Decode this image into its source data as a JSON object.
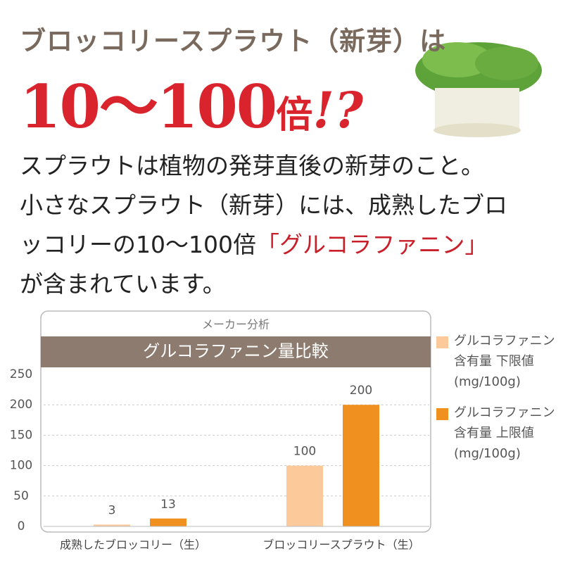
{
  "headline": {
    "line1": "ブロッコリースプラウト（新芽）は",
    "line2": [
      "10～100",
      "倍",
      "!?"
    ]
  },
  "body": {
    "lines": [
      [
        "スプラウトは植物の発芽直後の新芽のこと。"
      ],
      [
        "小さなスプラウト（新芽）には、成熟したブロ"
      ],
      [
        "ッコリーの10～100倍",
        "「グルコラファニン」"
      ],
      [
        "が含まれています。"
      ]
    ]
  },
  "chart_data": {
    "type": "bar",
    "subtitle": "メーカー分析",
    "title": "グルコラファニン量比較",
    "categories": [
      "成熟したブロッコリー（生）",
      "ブロッコリースプラウト（生）"
    ],
    "series": [
      {
        "name": "グルコラファニン\n含有量 下限値\n(mg/100g)",
        "color": "#fbc99a",
        "values": [
          3,
          100
        ]
      },
      {
        "name": "グルコラファニン\n含有量 上限値\n(mg/100g)",
        "color": "#f0901e",
        "values": [
          13,
          200
        ]
      }
    ],
    "ylim": [
      0,
      250
    ],
    "yticks": [
      0,
      50,
      100,
      150,
      200,
      250
    ],
    "grid": true
  }
}
